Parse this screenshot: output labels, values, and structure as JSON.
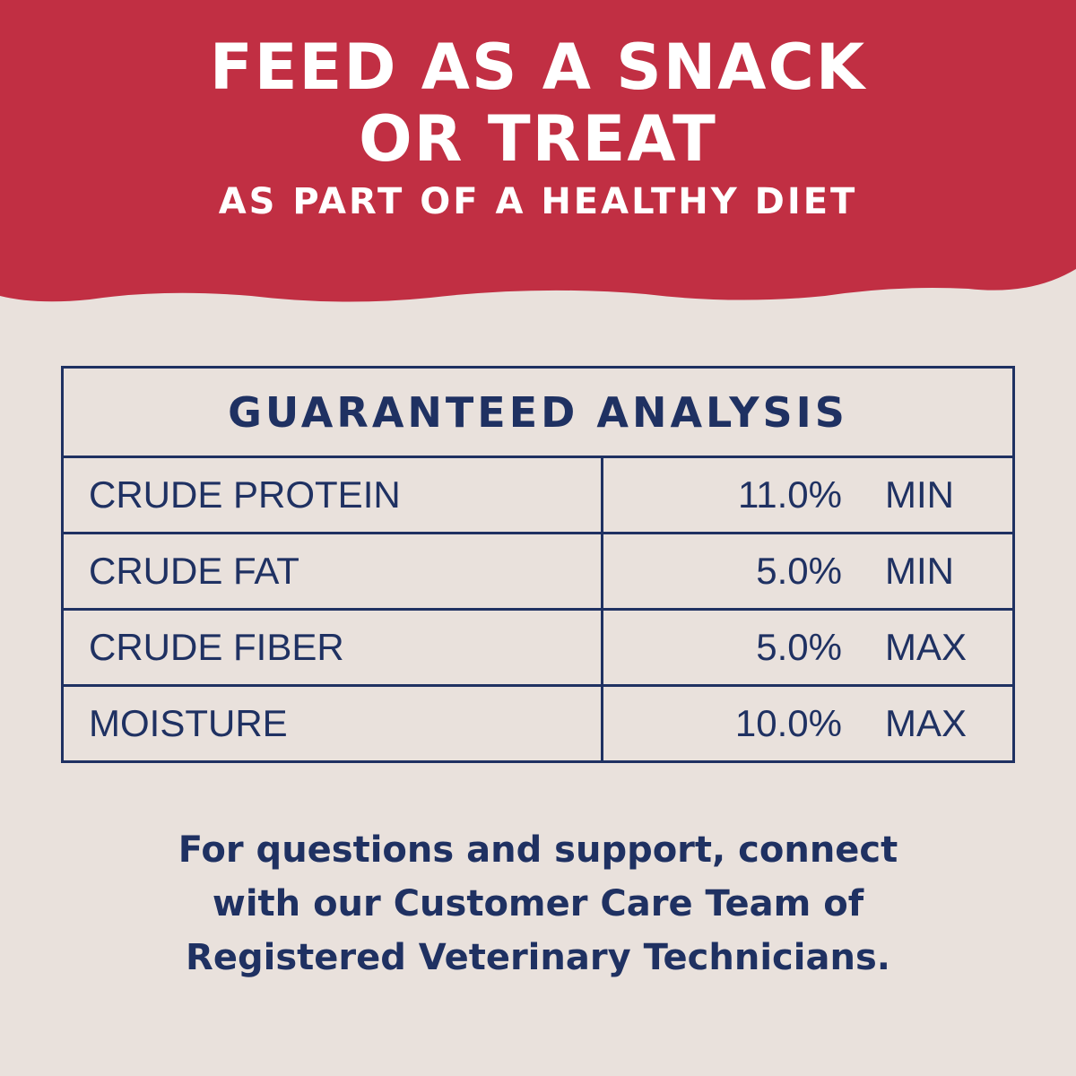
{
  "header": {
    "title_lines": [
      "FEED AS A SNACK",
      "OR TREAT"
    ],
    "subtitle": "AS PART OF A HEALTHY DIET"
  },
  "table": {
    "title": "GUARANTEED ANALYSIS",
    "rows": [
      [
        "CRUDE PROTEIN",
        "11.0%",
        "MIN"
      ],
      [
        "CRUDE FAT",
        "5.0%",
        "MIN"
      ],
      [
        "CRUDE FIBER",
        "5.0%",
        "MAX"
      ],
      [
        "MOISTURE",
        "10.0%",
        "MAX"
      ]
    ]
  },
  "footer": {
    "lines": [
      "For questions and support, connect",
      "with our Customer Care Team of",
      "Registered Veterinary Technicians."
    ]
  }
}
